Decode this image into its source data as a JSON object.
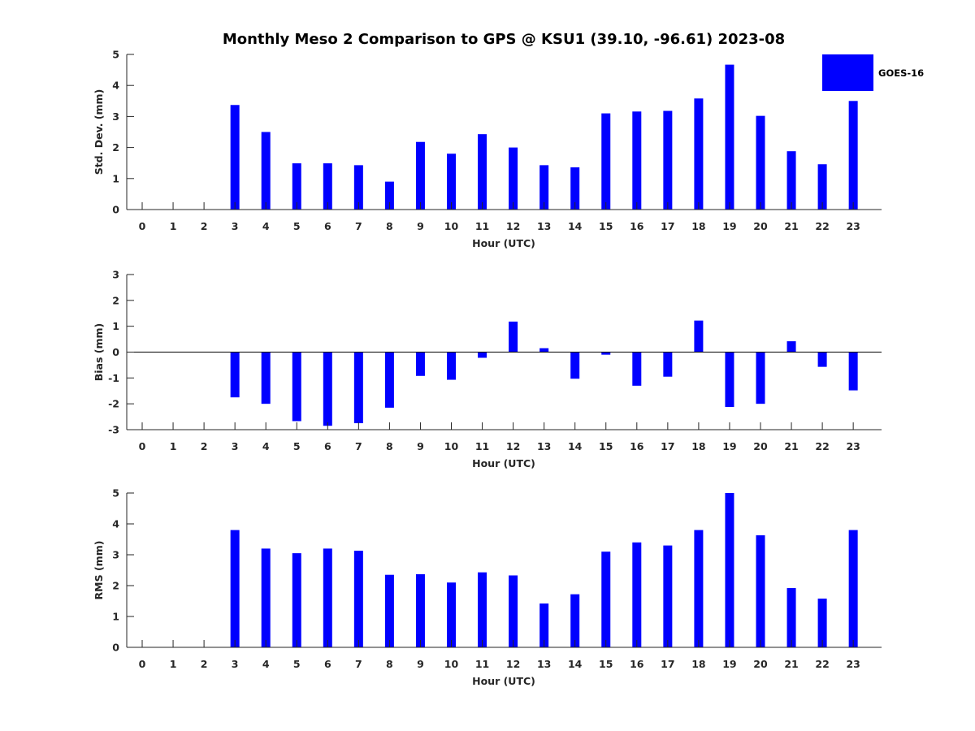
{
  "colors": {
    "bar": "#0000ff",
    "axis": "#262626",
    "background": "#ffffff"
  },
  "figure": {
    "title": "Monthly Meso 2 Comparison to GPS @ KSU1 (39.10, -96.61) 2023-08",
    "legend": {
      "label": "GOES-16",
      "placement": "top-right"
    }
  },
  "chart_data": [
    {
      "type": "bar",
      "xlabel": "Hour (UTC)",
      "ylabel": "Std. Dev. (mm)",
      "ylim": [
        0,
        5
      ],
      "yticks": [
        0,
        1,
        2,
        3,
        4,
        5
      ],
      "categories": [
        "0",
        "1",
        "2",
        "3",
        "4",
        "5",
        "6",
        "7",
        "8",
        "9",
        "10",
        "11",
        "12",
        "13",
        "14",
        "15",
        "16",
        "17",
        "18",
        "19",
        "20",
        "21",
        "22",
        "23"
      ],
      "series": [
        {
          "name": "GOES-16",
          "values": [
            null,
            null,
            null,
            3.37,
            2.5,
            1.49,
            1.49,
            1.43,
            0.9,
            2.18,
            1.8,
            2.43,
            2.0,
            1.43,
            1.36,
            3.1,
            3.16,
            3.18,
            3.58,
            4.67,
            3.02,
            1.88,
            1.46,
            3.5
          ]
        }
      ],
      "grid": false
    },
    {
      "type": "bar",
      "xlabel": "Hour (UTC)",
      "ylabel": "Bias (mm)",
      "ylim": [
        -3,
        3
      ],
      "yticks": [
        -3,
        -2,
        -1,
        0,
        1,
        2,
        3
      ],
      "categories": [
        "0",
        "1",
        "2",
        "3",
        "4",
        "5",
        "6",
        "7",
        "8",
        "9",
        "10",
        "11",
        "12",
        "13",
        "14",
        "15",
        "16",
        "17",
        "18",
        "19",
        "20",
        "21",
        "22",
        "23"
      ],
      "series": [
        {
          "name": "GOES-16",
          "values": [
            null,
            null,
            null,
            -1.75,
            -2.0,
            -2.67,
            -2.85,
            -2.75,
            -2.15,
            -0.92,
            -1.07,
            -0.22,
            1.18,
            0.15,
            -1.03,
            -0.1,
            -1.3,
            -0.95,
            1.22,
            -2.12,
            -2.0,
            0.42,
            -0.57,
            -1.48
          ]
        }
      ],
      "grid": false
    },
    {
      "type": "bar",
      "xlabel": "Hour (UTC)",
      "ylabel": "RMS (mm)",
      "ylim": [
        0,
        5
      ],
      "yticks": [
        0,
        1,
        2,
        3,
        4,
        5
      ],
      "categories": [
        "0",
        "1",
        "2",
        "3",
        "4",
        "5",
        "6",
        "7",
        "8",
        "9",
        "10",
        "11",
        "12",
        "13",
        "14",
        "15",
        "16",
        "17",
        "18",
        "19",
        "20",
        "21",
        "22",
        "23"
      ],
      "series": [
        {
          "name": "GOES-16",
          "values": [
            null,
            null,
            null,
            3.8,
            3.2,
            3.05,
            3.2,
            3.13,
            2.35,
            2.37,
            2.1,
            2.43,
            2.33,
            1.42,
            1.72,
            3.1,
            3.4,
            3.3,
            3.8,
            5.0,
            3.63,
            1.92,
            1.58,
            3.8
          ]
        }
      ],
      "grid": false
    }
  ]
}
